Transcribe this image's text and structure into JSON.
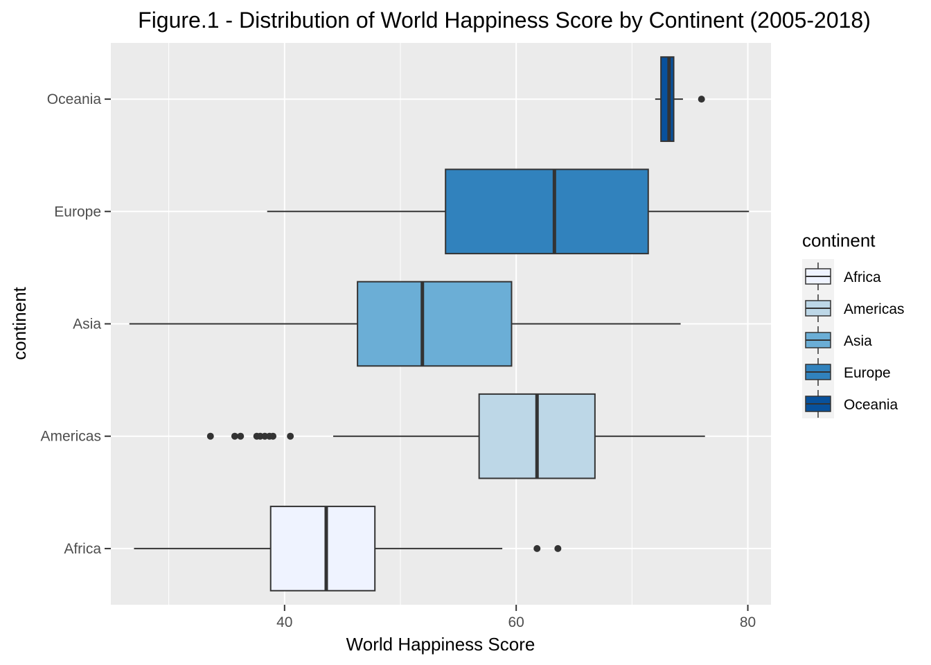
{
  "chart_data": {
    "type": "boxplot",
    "title": "Figure.1 - Distribution of World Happiness Score by Continent (2005-2018)",
    "xlabel": "World Happiness Score",
    "ylabel": "continent",
    "xlim": [
      25,
      82
    ],
    "xticks": [
      40,
      60,
      80
    ],
    "x_tick_labels": [
      "40",
      "60",
      "80"
    ],
    "grid": true,
    "orientation": "horizontal",
    "categories": [
      "Africa",
      "Americas",
      "Asia",
      "Europe",
      "Oceania"
    ],
    "series": [
      {
        "name": "Africa",
        "color": "#eff3ff",
        "whisker_low": 27.0,
        "q1": 38.8,
        "median": 43.6,
        "q3": 47.8,
        "whisker_high": 58.8,
        "outliers": [
          61.8,
          63.6
        ]
      },
      {
        "name": "Americas",
        "color": "#bdd7e7",
        "whisker_low": 44.2,
        "q1": 56.8,
        "median": 61.8,
        "q3": 66.8,
        "whisker_high": 76.3,
        "outliers": [
          33.6,
          35.7,
          36.2,
          37.6,
          37.9,
          38.3,
          38.7,
          39.0,
          40.5
        ]
      },
      {
        "name": "Asia",
        "color": "#6baed6",
        "whisker_low": 26.6,
        "q1": 46.3,
        "median": 51.9,
        "q3": 59.6,
        "whisker_high": 74.2,
        "outliers": []
      },
      {
        "name": "Europe",
        "color": "#3182bd",
        "whisker_low": 38.5,
        "q1": 53.9,
        "median": 63.3,
        "q3": 71.4,
        "whisker_high": 80.1,
        "outliers": []
      },
      {
        "name": "Oceania",
        "color": "#08519c",
        "whisker_low": 72.0,
        "q1": 72.5,
        "median": 73.2,
        "q3": 73.6,
        "whisker_high": 74.4,
        "outliers": [
          76.0
        ]
      }
    ],
    "legend": {
      "title": "continent",
      "position": "right",
      "entries": [
        "Africa",
        "Americas",
        "Asia",
        "Europe",
        "Oceania"
      ]
    }
  }
}
